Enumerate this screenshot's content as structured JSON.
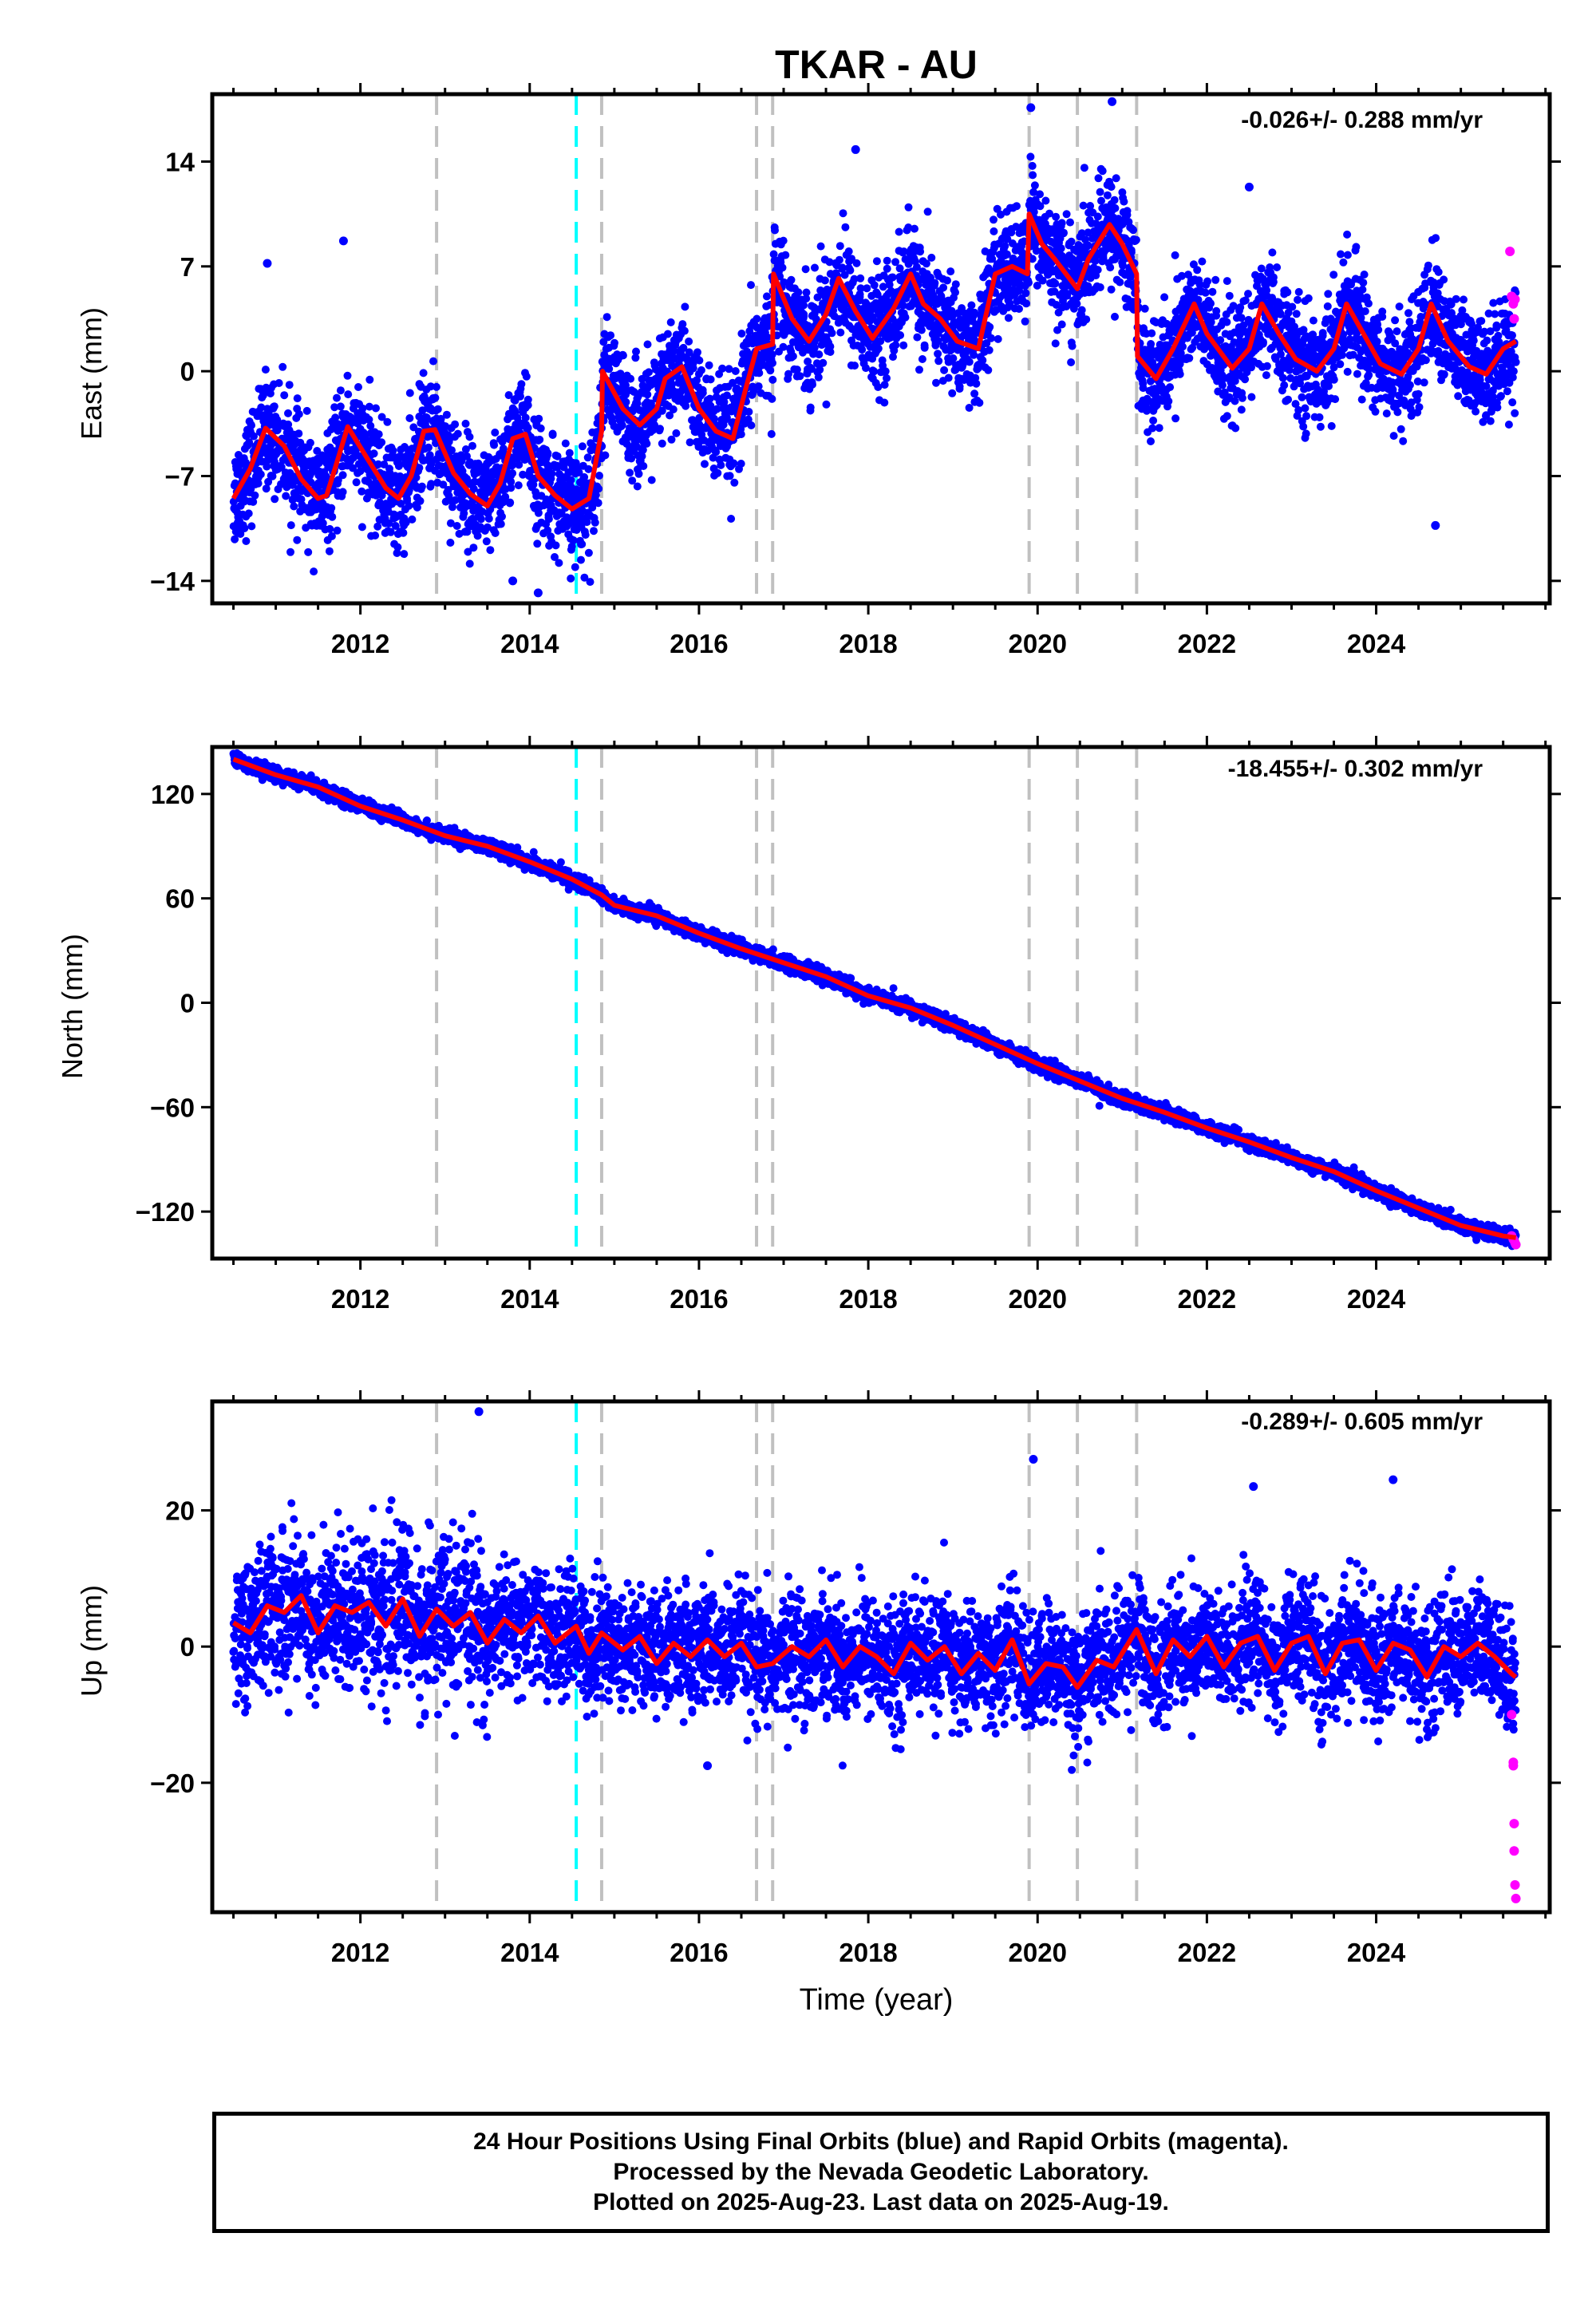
{
  "title": "TKAR - AU",
  "xlabel": "Time (year)",
  "colors": {
    "final_points": "#0000ff",
    "rapid_points": "#ff00ff",
    "model_line": "#ff0000",
    "event_line": "#c0c0c0",
    "highlight_event_line": "#00ffff"
  },
  "chart_data": [
    {
      "type": "scatter",
      "id": "east",
      "ylabel": "East (mm)",
      "rate_label": "-0.026+/- 0.288 mm/yr",
      "xlim": [
        2010.25,
        2026.05
      ],
      "ylim": [
        -15.5,
        18.5
      ],
      "xticks": [
        2012,
        2014,
        2016,
        2018,
        2020,
        2022,
        2024
      ],
      "yticks": [
        -14,
        -7,
        0,
        7,
        14
      ],
      "ytick_labels": [
        "−14",
        "−7",
        "0",
        "7",
        "14"
      ],
      "event_lines": [
        2012.9,
        2014.55,
        2014.85,
        2016.68,
        2016.87,
        2019.9,
        2020.47,
        2021.17
      ],
      "highlight_event": 2014.55,
      "model_series": {
        "name": "model",
        "x": [
          2010.5,
          2010.7,
          2010.88,
          2011.1,
          2011.3,
          2011.5,
          2011.6,
          2011.7,
          2011.85,
          2012.1,
          2012.3,
          2012.45,
          2012.6,
          2012.75,
          2012.88,
          2013.1,
          2013.3,
          2013.5,
          2013.65,
          2013.8,
          2013.95,
          2014.1,
          2014.3,
          2014.5,
          2014.7,
          2014.85,
          2014.86,
          2015.1,
          2015.3,
          2015.5,
          2015.6,
          2015.8,
          2016.0,
          2016.2,
          2016.4,
          2016.55,
          2016.68,
          2016.87,
          2016.88,
          2017.1,
          2017.3,
          2017.5,
          2017.65,
          2017.85,
          2018.05,
          2018.3,
          2018.5,
          2018.65,
          2018.85,
          2019.05,
          2019.3,
          2019.5,
          2019.7,
          2019.88,
          2019.9,
          2020.05,
          2020.2,
          2020.47,
          2020.6,
          2020.85,
          2021.0,
          2021.17,
          2021.18,
          2021.4,
          2021.6,
          2021.85,
          2022.0,
          2022.3,
          2022.5,
          2022.65,
          2022.85,
          2023.05,
          2023.3,
          2023.5,
          2023.65,
          2023.85,
          2024.05,
          2024.3,
          2024.5,
          2024.65,
          2024.85,
          2025.1,
          2025.3,
          2025.5,
          2025.65
        ],
        "y": [
          -8.5,
          -6.5,
          -3.8,
          -5.0,
          -7.2,
          -8.5,
          -8.3,
          -6.5,
          -3.7,
          -6.0,
          -7.8,
          -8.5,
          -7.0,
          -4.0,
          -3.9,
          -6.8,
          -8.2,
          -9.0,
          -7.5,
          -4.5,
          -4.2,
          -7.0,
          -8.3,
          -9.2,
          -8.5,
          -4.0,
          0.0,
          -2.5,
          -3.6,
          -2.5,
          -0.5,
          0.3,
          -2.5,
          -4.0,
          -4.5,
          -1.2,
          1.5,
          1.8,
          6.5,
          3.5,
          2.0,
          3.8,
          6.2,
          4.0,
          2.2,
          4.2,
          6.5,
          4.5,
          3.5,
          2.0,
          1.5,
          6.5,
          7.0,
          6.5,
          10.5,
          8.5,
          7.5,
          5.5,
          7.5,
          9.8,
          8.5,
          6.5,
          1.0,
          -0.5,
          1.5,
          4.5,
          2.5,
          0.2,
          1.5,
          4.5,
          2.5,
          0.8,
          0.0,
          1.5,
          4.5,
          2.5,
          0.5,
          -0.2,
          1.5,
          4.5,
          2.0,
          0.3,
          -0.2,
          1.5,
          2.0
        ]
      },
      "rapid_points": {
        "x": [
          2025.58,
          2025.6,
          2025.62,
          2025.63,
          2025.64
        ],
        "y": [
          8.0,
          5.0,
          4.5,
          3.5,
          4.8
        ]
      },
      "notable_points": {
        "x": [
          2010.9,
          2011.8,
          2019.92,
          2020.88,
          2017.85,
          2022.5,
          2024.7,
          2014.1,
          2013.8
        ],
        "y": [
          7.2,
          8.7,
          17.6,
          18.0,
          14.8,
          12.3,
          -10.3,
          -14.8,
          -14.0
        ]
      }
    },
    {
      "type": "scatter",
      "id": "north",
      "ylabel": "North (mm)",
      "rate_label": "-18.455+/- 0.302 mm/yr",
      "xlim": [
        2010.25,
        2026.05
      ],
      "ylim": [
        -147,
        147
      ],
      "xticks": [
        2012,
        2014,
        2016,
        2018,
        2020,
        2022,
        2024
      ],
      "yticks": [
        -120,
        -60,
        0,
        60,
        120
      ],
      "ytick_labels": [
        "−120",
        "−60",
        "0",
        "60",
        "120"
      ],
      "event_lines": [
        2012.9,
        2014.55,
        2014.85,
        2016.68,
        2016.87,
        2019.9,
        2020.47,
        2021.17
      ],
      "highlight_event": 2014.55,
      "model_series": {
        "name": "model",
        "x": [
          2010.5,
          2011.0,
          2011.5,
          2012.0,
          2012.5,
          2013.0,
          2013.5,
          2014.0,
          2014.5,
          2014.85,
          2015.0,
          2015.5,
          2016.0,
          2016.5,
          2017.0,
          2017.5,
          2018.0,
          2018.5,
          2019.0,
          2019.5,
          2020.0,
          2020.5,
          2021.0,
          2021.5,
          2022.0,
          2022.5,
          2023.0,
          2023.5,
          2024.0,
          2024.5,
          2025.0,
          2025.5,
          2025.65
        ],
        "y": [
          140,
          131,
          124,
          113,
          105,
          96,
          90,
          81,
          71,
          62,
          56,
          50,
          40,
          31,
          23,
          15,
          4,
          -3,
          -13,
          -24,
          -35,
          -45,
          -55,
          -63,
          -72,
          -80,
          -89,
          -97,
          -108,
          -118,
          -128,
          -134,
          -135
        ]
      },
      "rapid_points": {
        "x": [
          2025.6,
          2025.62,
          2025.64,
          2025.65
        ],
        "y": [
          -134,
          -136,
          -138,
          -139
        ]
      },
      "notable_points": {
        "x": [],
        "y": []
      }
    },
    {
      "type": "scatter",
      "id": "up",
      "ylabel": "Up (mm)",
      "rate_label": "-0.289+/- 0.605 mm/yr",
      "xlim": [
        2010.25,
        2026.05
      ],
      "ylim": [
        -39,
        36
      ],
      "xticks": [
        2012,
        2014,
        2016,
        2018,
        2020,
        2022,
        2024
      ],
      "yticks": [
        -20,
        0,
        20
      ],
      "ytick_labels": [
        "−20",
        "0",
        "20"
      ],
      "event_lines": [
        2012.9,
        2014.55,
        2014.85,
        2016.68,
        2016.87,
        2019.9,
        2020.47,
        2021.17
      ],
      "highlight_event": 2014.55,
      "model_series": {
        "name": "model",
        "x": [
          2010.5,
          2010.7,
          2010.9,
          2011.1,
          2011.3,
          2011.5,
          2011.7,
          2011.9,
          2012.1,
          2012.3,
          2012.5,
          2012.7,
          2012.9,
          2013.1,
          2013.3,
          2013.5,
          2013.7,
          2013.9,
          2014.1,
          2014.3,
          2014.55,
          2014.7,
          2014.85,
          2015.1,
          2015.3,
          2015.5,
          2015.7,
          2015.9,
          2016.1,
          2016.3,
          2016.5,
          2016.68,
          2016.87,
          2017.1,
          2017.3,
          2017.5,
          2017.7,
          2017.9,
          2018.1,
          2018.3,
          2018.5,
          2018.7,
          2018.9,
          2019.1,
          2019.3,
          2019.5,
          2019.7,
          2019.9,
          2020.1,
          2020.3,
          2020.47,
          2020.7,
          2020.9,
          2021.17,
          2021.4,
          2021.6,
          2021.8,
          2022.0,
          2022.2,
          2022.4,
          2022.6,
          2022.8,
          2023.0,
          2023.2,
          2023.4,
          2023.6,
          2023.8,
          2024.0,
          2024.2,
          2024.4,
          2024.6,
          2024.8,
          2025.0,
          2025.2,
          2025.4,
          2025.6,
          2025.65
        ],
        "y": [
          3.5,
          2.0,
          6.0,
          5.0,
          7.5,
          2.0,
          6.0,
          5.0,
          6.5,
          3.0,
          7.0,
          1.5,
          5.5,
          3.0,
          5.0,
          0.5,
          4.0,
          2.0,
          4.5,
          0.5,
          3.0,
          -1.0,
          2.0,
          -0.5,
          1.5,
          -2.5,
          0.5,
          -1.5,
          1.0,
          -1.5,
          0.5,
          -3.0,
          -2.5,
          0.0,
          -1.5,
          1.0,
          -3.0,
          0.0,
          -1.5,
          -4.0,
          0.5,
          -2.0,
          0.0,
          -4.0,
          -1.0,
          -3.5,
          1.0,
          -5.5,
          -2.5,
          -3.0,
          -6.0,
          -2.0,
          -3.0,
          2.5,
          -4.0,
          1.0,
          -1.5,
          1.5,
          -3.0,
          0.5,
          1.5,
          -3.5,
          0.5,
          1.5,
          -4.0,
          0.5,
          1.0,
          -3.5,
          0.5,
          -0.5,
          -4.5,
          0.0,
          -1.5,
          0.5,
          -1.5,
          -4.0,
          -4.5
        ]
      },
      "rapid_points": {
        "x": [
          2025.6,
          2025.62,
          2025.62,
          2025.63,
          2025.63,
          2025.64,
          2025.65
        ],
        "y": [
          -10,
          -17,
          -17.5,
          -26,
          -30,
          -35,
          -37
        ]
      },
      "notable_points": {
        "x": [
          2013.4,
          2019.95,
          2016.1,
          2022.55,
          2024.2
        ],
        "y": [
          34.5,
          27.5,
          -17.5,
          23.5,
          24.5
        ]
      }
    }
  ],
  "footer": {
    "line1": "24 Hour Positions Using Final Orbits (blue) and Rapid Orbits (magenta).",
    "line2": "Processed by the Nevada Geodetic Laboratory.",
    "line3": "Plotted on 2025-Aug-23. Last data on 2025-Aug-19."
  }
}
